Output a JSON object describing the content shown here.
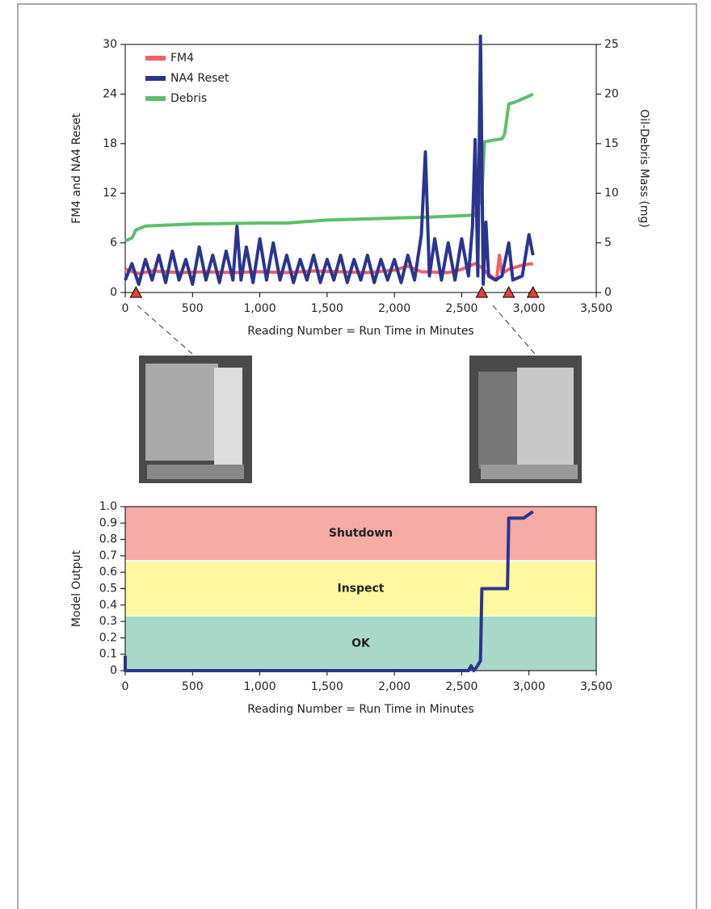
{
  "chart_data": [
    {
      "type": "line",
      "xlabel": "Reading Number = Run Time in Minutes",
      "ylabel": "FM4 and NA4 Reset",
      "y2label": "Oil-Debris Mass (mg)",
      "xlim": [
        0,
        3500
      ],
      "ylim": [
        0,
        30
      ],
      "y2lim": [
        0,
        25
      ],
      "xticks": [
        0,
        500,
        {
          "value": 1000,
          "label": "1,000"
        },
        {
          "value": 1500,
          "label": "1,500"
        },
        {
          "value": 2000,
          "label": "2,000"
        },
        {
          "value": 2500,
          "label": "2,500"
        },
        {
          "value": 3000,
          "label": "3,000"
        },
        {
          "value": 3500,
          "label": "3,500"
        }
      ],
      "yticks": [
        0,
        6,
        12,
        18,
        24,
        30
      ],
      "y2ticks": [
        0,
        5,
        10,
        15,
        20,
        25
      ],
      "legend": "upper left",
      "markers": [
        80,
        2650,
        2850,
        3030
      ],
      "marker_color": "#e0413c",
      "series": [
        {
          "name": "FM4",
          "color": "#f0606a",
          "x": [
            0,
            100,
            200,
            400,
            600,
            800,
            1000,
            1200,
            1400,
            1600,
            1800,
            2000,
            2100,
            2200,
            2400,
            2500,
            2600,
            2650,
            2700,
            2760,
            2780,
            2800,
            2850,
            2950,
            3030
          ],
          "values": [
            2.8,
            2.3,
            2.6,
            2.4,
            2.5,
            2.4,
            2.5,
            2.4,
            2.6,
            2.5,
            2.4,
            2.7,
            3.2,
            2.5,
            2.4,
            2.8,
            3.5,
            3.0,
            2.2,
            1.5,
            4.5,
            2.3,
            2.8,
            3.3,
            3.5
          ]
        },
        {
          "name": "NA4 Reset",
          "color": "#2b3590",
          "x": [
            0,
            50,
            100,
            150,
            200,
            250,
            300,
            350,
            400,
            450,
            500,
            550,
            600,
            650,
            700,
            750,
            800,
            830,
            860,
            900,
            950,
            1000,
            1050,
            1100,
            1150,
            1200,
            1250,
            1300,
            1350,
            1400,
            1450,
            1500,
            1550,
            1600,
            1650,
            1700,
            1750,
            1800,
            1850,
            1900,
            1950,
            2000,
            2050,
            2100,
            2150,
            2200,
            2230,
            2260,
            2300,
            2350,
            2400,
            2450,
            2500,
            2550,
            2580,
            2600,
            2620,
            2640,
            2660,
            2680,
            2700,
            2750,
            2800,
            2850,
            2880,
            2950,
            3000,
            3030
          ],
          "values": [
            1.5,
            3.5,
            1.0,
            4.0,
            1.5,
            4.5,
            1.2,
            5.0,
            1.5,
            4.0,
            1.0,
            5.5,
            1.5,
            4.5,
            1.2,
            5.0,
            1.5,
            8.0,
            1.5,
            5.5,
            1.2,
            6.5,
            1.5,
            6.0,
            1.5,
            4.5,
            1.2,
            4.0,
            1.5,
            4.5,
            1.2,
            4.0,
            1.5,
            4.5,
            1.2,
            4.0,
            1.5,
            4.5,
            1.2,
            4.0,
            1.5,
            4.0,
            1.2,
            4.5,
            1.5,
            7.0,
            17.0,
            2.0,
            6.5,
            1.5,
            6.0,
            1.5,
            6.5,
            2.0,
            8.0,
            18.5,
            2.0,
            31.0,
            1.0,
            8.5,
            2.0,
            1.5,
            2.0,
            6.0,
            1.5,
            2.0,
            7.0,
            4.5
          ]
        },
        {
          "name": "Debris",
          "color": "#5cbf6a",
          "axis": "y2",
          "x": [
            0,
            50,
            80,
            150,
            500,
            1000,
            1200,
            1500,
            2000,
            2250,
            2600,
            2620,
            2650,
            2670,
            2800,
            2820,
            2850,
            2900,
            2950,
            3000,
            3030
          ],
          "values": [
            5.2,
            5.5,
            6.3,
            6.7,
            6.9,
            7.0,
            7.0,
            7.3,
            7.5,
            7.6,
            7.8,
            8.5,
            10,
            15.2,
            15.5,
            16,
            19,
            19.2,
            19.5,
            19.8,
            20
          ]
        }
      ]
    },
    {
      "type": "line",
      "xlabel": "Reading Number = Run Time in Minutes",
      "ylabel": "Model Output",
      "xlim": [
        0,
        3500
      ],
      "ylim": [
        0,
        1
      ],
      "xticks": [
        0,
        500,
        {
          "value": 1000,
          "label": "1,000"
        },
        {
          "value": 1500,
          "label": "1,500"
        },
        {
          "value": 2000,
          "label": "2,000"
        },
        {
          "value": 2500,
          "label": "2,500"
        },
        {
          "value": 3000,
          "label": "3,000"
        },
        {
          "value": 3500,
          "label": "3,500"
        }
      ],
      "yticks": [
        0,
        0.1,
        0.2,
        0.3,
        0.4,
        0.5,
        0.6,
        0.7,
        0.8,
        0.9,
        {
          "value": 1,
          "label": "1.0"
        }
      ],
      "bands": [
        {
          "label": "OK",
          "from": 0,
          "to": 0.33,
          "color": "#a8d8c8"
        },
        {
          "label": "Inspect",
          "from": 0.335,
          "to": 0.665,
          "color": "#fff7a0"
        },
        {
          "label": "Shutdown",
          "from": 0.675,
          "to": 1,
          "color": "#f4aaa5"
        }
      ],
      "series": [
        {
          "color": "#2b3590",
          "x": [
            0,
            0,
            2550,
            2570,
            2590,
            2610,
            2640,
            2650,
            2660,
            2840,
            2850,
            2960,
            3030
          ],
          "values": [
            0.09,
            0,
            0,
            0.03,
            0,
            0.02,
            0.06,
            0.5,
            0.5,
            0.5,
            0.93,
            0.93,
            0.97
          ]
        }
      ]
    }
  ]
}
